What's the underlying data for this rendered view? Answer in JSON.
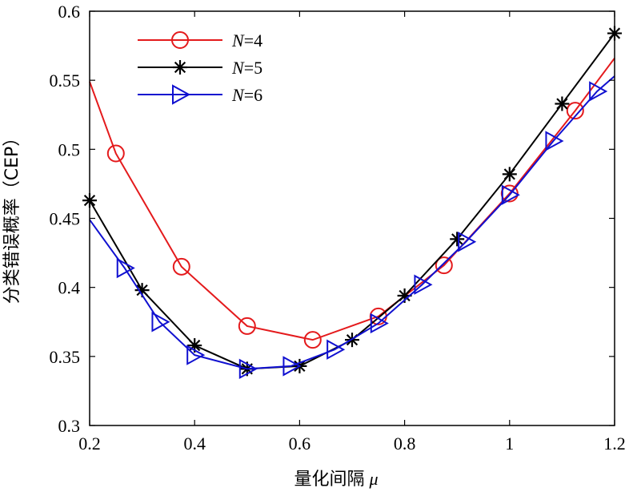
{
  "chart_data": {
    "type": "line",
    "xlabel": "量化间隔",
    "xlabel_symbol": "μ",
    "ylabel": "分类错误概率（CEP）",
    "xlim": [
      0.2,
      1.2
    ],
    "ylim": [
      0.3,
      0.6
    ],
    "xticks": [
      "0.2",
      "0.4",
      "0.6",
      "0.8",
      "1",
      "1.2"
    ],
    "yticks": [
      "0.3",
      "0.35",
      "0.4",
      "0.45",
      "0.5",
      "0.55",
      "0.6"
    ],
    "grid": false,
    "legend_position": "top-left",
    "series": [
      {
        "name": "N=4",
        "legend_var": "N",
        "legend_rest": "=4",
        "color": "#e41a1c",
        "marker": "circle",
        "x": [
          0.2,
          0.25,
          0.375,
          0.5,
          0.625,
          0.75,
          0.875,
          1.0,
          1.125,
          1.2
        ],
        "y": [
          0.549,
          0.497,
          0.415,
          0.372,
          0.362,
          0.379,
          0.416,
          0.468,
          0.528,
          0.566
        ],
        "marker_indices": [
          1,
          2,
          3,
          4,
          5,
          6,
          7,
          8
        ]
      },
      {
        "name": "N=5",
        "legend_var": "N",
        "legend_rest": "=5",
        "color": "#000000",
        "marker": "asterisk",
        "x": [
          0.2,
          0.3,
          0.4,
          0.5,
          0.6,
          0.7,
          0.8,
          0.9,
          1.0,
          1.1,
          1.2
        ],
        "y": [
          0.463,
          0.398,
          0.358,
          0.341,
          0.343,
          0.362,
          0.394,
          0.435,
          0.482,
          0.533,
          0.584
        ],
        "marker_indices": [
          0,
          1,
          2,
          3,
          4,
          5,
          6,
          7,
          8,
          9,
          10
        ]
      },
      {
        "name": "N=6",
        "legend_var": "N",
        "legend_rest": "=6",
        "color": "#1010d0",
        "marker": "triangle-right",
        "x": [
          0.2,
          0.2667,
          0.3333,
          0.4,
          0.5,
          0.5833,
          0.6667,
          0.75,
          0.8333,
          0.9167,
          1.0,
          1.0833,
          1.1667,
          1.2
        ],
        "y": [
          0.449,
          0.414,
          0.375,
          0.351,
          0.341,
          0.343,
          0.355,
          0.374,
          0.402,
          0.433,
          0.467,
          0.506,
          0.542,
          0.553
        ],
        "marker_indices": [
          1,
          2,
          3,
          4,
          5,
          6,
          7,
          8,
          9,
          10,
          11,
          12
        ]
      }
    ]
  }
}
